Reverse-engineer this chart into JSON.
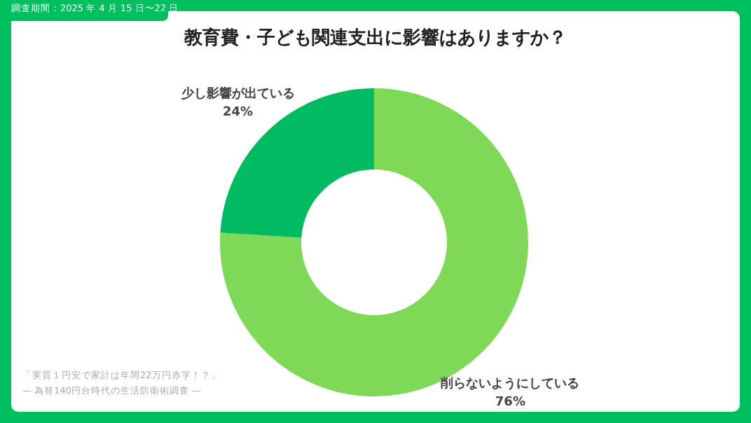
{
  "chart_data": {
    "type": "donut",
    "title": "教育費・子ども関連支出に影響はありますか？",
    "categories": [
      "削らないようにしている",
      "少し影響が出ている"
    ],
    "values": [
      76,
      24
    ],
    "value_labels": [
      "76%",
      "24%"
    ],
    "colors": [
      "#7ed957",
      "#00bb5f"
    ],
    "annotations": [
      "調査期間：2025 年 4 月 15 日〜22 日",
      "「実質１円安で家計は年間22万円赤字！？」",
      "— 為替140円台時代の生活防衛術調査 —"
    ],
    "legend": false
  }
}
